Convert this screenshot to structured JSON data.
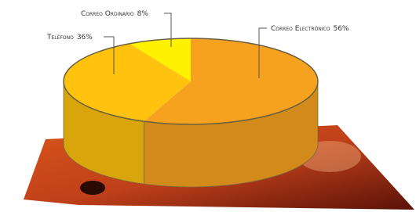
{
  "chart_data": {
    "type": "pie",
    "categories": [
      "Correo Electrónico",
      "Correo Ordinario",
      "Teléfono"
    ],
    "values": [
      56,
      8,
      36
    ],
    "value_labels": [
      "56%",
      "8%",
      "36%"
    ],
    "colors": [
      "#f7a21f",
      "#fff200",
      "#ffc20e"
    ]
  }
}
